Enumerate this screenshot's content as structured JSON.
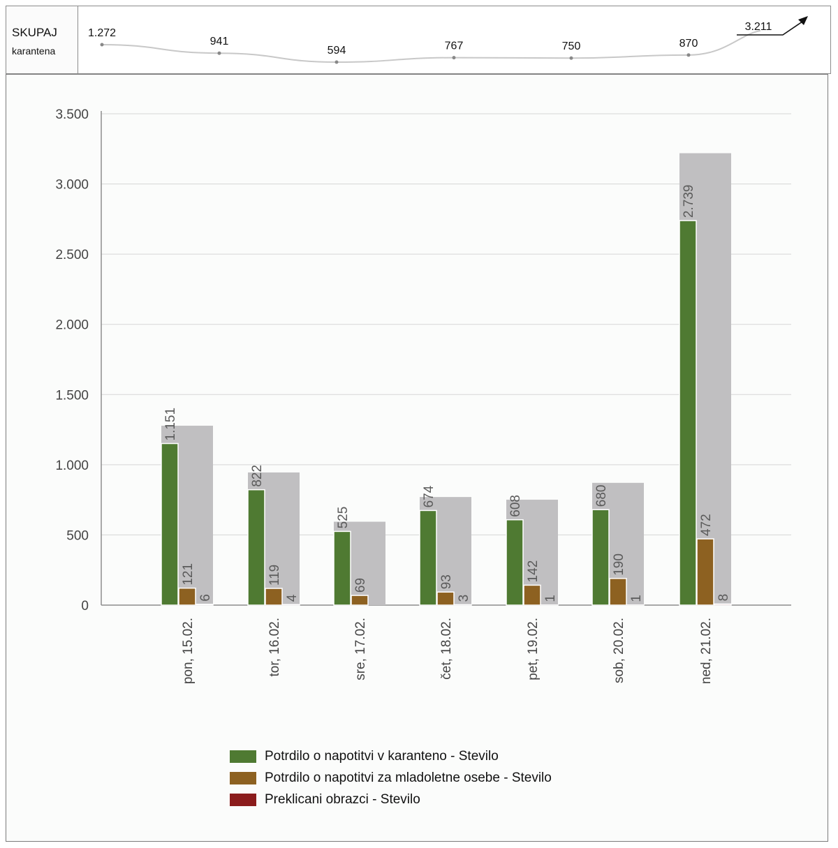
{
  "kpi": {
    "title": "SKUPAJ",
    "subtitle": "karantena",
    "values": [
      "1.272",
      "941",
      "594",
      "767",
      "750",
      "870"
    ],
    "numbers": [
      1272,
      941,
      594,
      767,
      750,
      870
    ],
    "final_value": "3.211",
    "final_number": 3211,
    "trend_icon": "arrow-up-right-icon",
    "line_color": "#c8c8c8"
  },
  "chart_data": {
    "type": "bar",
    "categories": [
      "pon, 15.02.",
      "tor, 16.02.",
      "sre, 17.02.",
      "čet, 18.02.",
      "pet, 19.02.",
      "sob, 20.02.",
      "ned, 21.02."
    ],
    "series": [
      {
        "name": "Potrdilo o napotitvi v karanteno - Stevilo",
        "values": [
          1151,
          822,
          525,
          674,
          608,
          680,
          2739
        ],
        "labels": [
          "1.151",
          "822",
          "525",
          "674",
          "608",
          "680",
          "2.739"
        ],
        "color": "#4f7a32"
      },
      {
        "name": "Potrdilo o napotitvi za mladoletne osebe - Stevilo",
        "values": [
          121,
          119,
          69,
          93,
          142,
          190,
          472
        ],
        "labels": [
          "121",
          "119",
          "69",
          "93",
          "142",
          "190",
          "472"
        ],
        "color": "#8d6121"
      },
      {
        "name": "Preklicani obrazci - Stevilo",
        "values": [
          6,
          4,
          0,
          3,
          1,
          1,
          8
        ],
        "labels": [
          "6",
          "4",
          "",
          "3",
          "1",
          "1",
          "8"
        ],
        "color": "#8b1c1c"
      }
    ],
    "totals": [
      1278,
      945,
      594,
      770,
      751,
      871,
      3219
    ],
    "total_color": "#c0bfc1",
    "ylim": [
      0,
      3500
    ],
    "yticks": [
      0,
      500,
      1000,
      1500,
      2000,
      2500,
      3000,
      3500
    ],
    "ytick_labels": [
      "0",
      "500",
      "1.000",
      "1.500",
      "2.000",
      "2.500",
      "3.000",
      "3.500"
    ],
    "grid": true,
    "legend_position": "bottom"
  },
  "legend": {
    "items": [
      {
        "label": "Potrdilo o napotitvi v karanteno - Stevilo",
        "color": "#4f7a32"
      },
      {
        "label": "Potrdilo o napotitvi za mladoletne osebe - Stevilo",
        "color": "#8d6121"
      },
      {
        "label": "Preklicani obrazci - Stevilo",
        "color": "#8b1c1c"
      }
    ]
  }
}
